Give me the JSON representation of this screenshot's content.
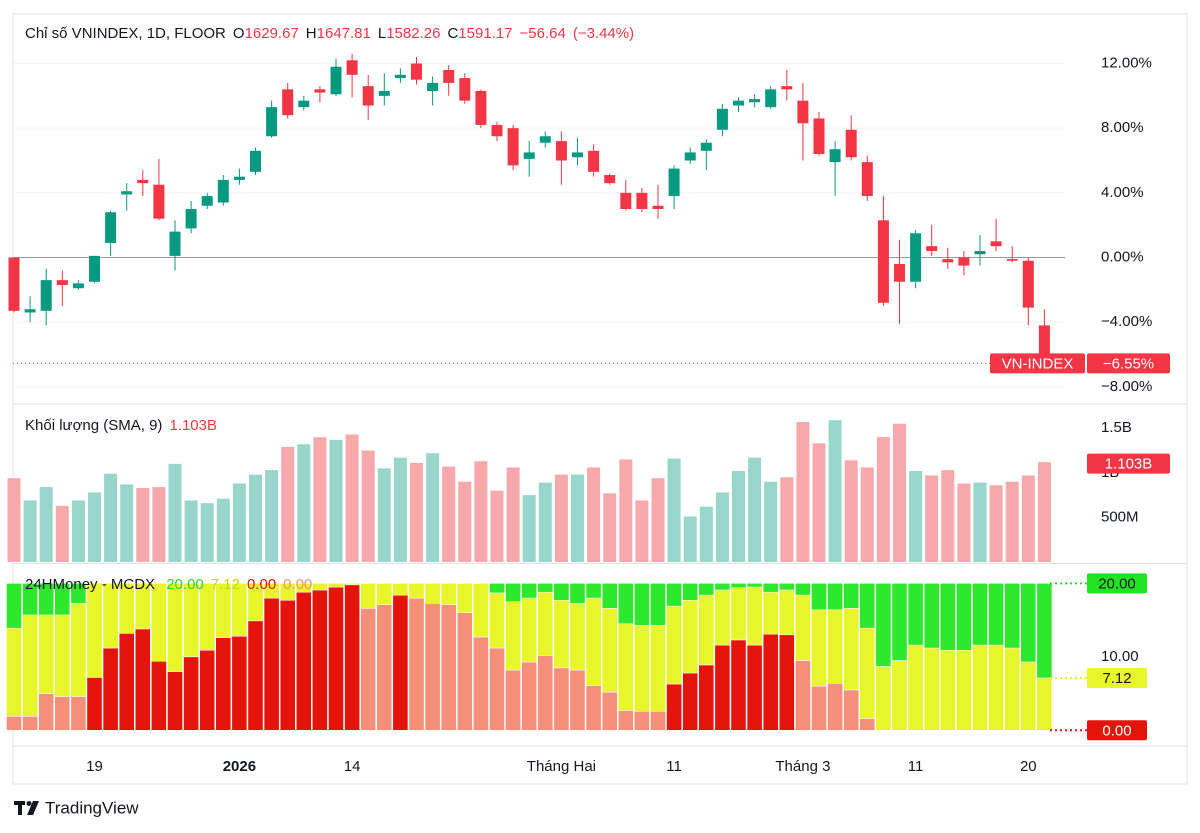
{
  "chart_data": [
    {
      "type": "candlestick",
      "title": "Chỉ số VNINDEX, 1D, FLOOR",
      "ohlc_legend": [
        {
          "key": "O",
          "value": 1629.67
        },
        {
          "key": "H",
          "value": 1647.81
        },
        {
          "key": "L",
          "value": 1582.26
        },
        {
          "key": "C",
          "value": 1591.17
        }
      ],
      "change": {
        "value": -56.64,
        "label": "−56.64"
      },
      "change_percent": {
        "value": -3.44,
        "label": "(−3.44%)"
      },
      "series": [
        {
          "name": "VN-INDEX",
          "up_color": "#089981",
          "down_color": "#f23645",
          "open": [
            0,
            -3.4,
            -3.3,
            -1.4,
            -1.9,
            -1.5,
            0.9,
            3.9,
            4.8,
            4.5,
            0.1,
            1.8,
            3.2,
            3.4,
            4.8,
            5.3,
            7.5,
            10.4,
            9.3,
            10.4,
            10.1,
            12.2,
            10.6,
            10.0,
            11.1,
            12.0,
            10.3,
            11.6,
            11.1,
            10.3,
            8.2,
            8.0,
            6.1,
            7.1,
            7.2,
            6.2,
            6.6,
            5.1,
            4.0,
            4.0,
            3.2,
            3.8,
            6.0,
            6.6,
            7.9,
            9.4,
            9.6,
            9.3,
            10.6,
            9.7,
            8.6,
            5.9,
            7.9,
            5.9,
            2.3,
            -0.4,
            -1.5,
            0.7,
            -0.1,
            0,
            0.2,
            1.0,
            -0.1,
            -0.2,
            -4.2
          ],
          "high": [
            0,
            -2.4,
            -0.7,
            -0.8,
            -1.4,
            0.1,
            2.9,
            4.6,
            5.4,
            6.1,
            2.3,
            3.5,
            4.0,
            5.1,
            5.5,
            6.8,
            9.7,
            10.8,
            10.0,
            10.6,
            12.3,
            12.6,
            11.3,
            11.4,
            11.7,
            12.4,
            11.2,
            11.9,
            11.4,
            10.4,
            8.4,
            8.2,
            7.2,
            7.8,
            7.8,
            7.4,
            7.0,
            5.2,
            4.8,
            4.3,
            4.5,
            5.7,
            6.8,
            7.3,
            9.5,
            9.9,
            10.1,
            10.6,
            11.6,
            10.8,
            9.0,
            7.2,
            8.8,
            6.3,
            3.8,
            1.1,
            1.7,
            2.0,
            0.6,
            0.4,
            1.4,
            2.4,
            0.7,
            0,
            -3.2
          ],
          "low": [
            -3.4,
            -4.0,
            -4.2,
            -3.0,
            -2.0,
            -1.6,
            0.1,
            2.9,
            3.8,
            2.3,
            -0.8,
            1.5,
            3.0,
            3.2,
            4.5,
            5.1,
            7.4,
            8.6,
            9.1,
            9.6,
            10.0,
            9.9,
            8.5,
            9.4,
            10.8,
            10.7,
            9.4,
            10.0,
            9.5,
            8.0,
            7.2,
            5.4,
            5.0,
            6.8,
            4.5,
            5.7,
            5.0,
            4.5,
            2.9,
            2.8,
            2.4,
            3.0,
            5.8,
            5.4,
            7.5,
            9.0,
            9.3,
            9.2,
            9.7,
            6.0,
            6.3,
            3.8,
            6.0,
            3.5,
            -3.0,
            -4.1,
            -1.9,
            0.1,
            -0.7,
            -1.1,
            -0.5,
            0.4,
            -0.3,
            -4.2,
            -6.55
          ],
          "close": [
            -3.3,
            -3.2,
            -1.4,
            -1.7,
            -1.6,
            0.1,
            2.8,
            4.1,
            4.6,
            2.4,
            1.6,
            3.0,
            3.8,
            4.8,
            5.0,
            6.6,
            9.3,
            8.8,
            9.7,
            10.2,
            11.8,
            11.3,
            9.4,
            10.3,
            11.3,
            11.0,
            10.8,
            10.8,
            9.7,
            8.2,
            7.5,
            5.7,
            6.5,
            7.5,
            6.0,
            6.5,
            5.3,
            4.6,
            3.0,
            3.0,
            3.0,
            5.5,
            6.5,
            7.1,
            9.2,
            9.7,
            9.8,
            10.4,
            10.4,
            8.3,
            6.4,
            6.7,
            6.2,
            3.8,
            -2.8,
            -1.5,
            1.5,
            0.4,
            -0.3,
            -0.5,
            0.4,
            0.7,
            -0.2,
            -3.1,
            -6.55
          ]
        }
      ],
      "last_value_label": "−6.55%",
      "ylim": [
        -9,
        15
      ],
      "yticks": [
        {
          "value": 12,
          "label": "12.00%"
        },
        {
          "value": 8,
          "label": "8.00%"
        },
        {
          "value": 4,
          "label": "4.00%"
        },
        {
          "value": 0,
          "label": "0.00%"
        },
        {
          "value": -4,
          "label": "−4.00%"
        },
        {
          "value": -8,
          "label": "−8.00%"
        }
      ],
      "grid": true
    },
    {
      "type": "bar",
      "title": "Khối lượng (SMA, 9)",
      "values": [
        940000000.0,
        690000000.0,
        840000000.0,
        630000000.0,
        690000000.0,
        780000000.0,
        990000000.0,
        870000000.0,
        830000000.0,
        840000000.0,
        1100000000.0,
        690000000.0,
        660000000.0,
        710000000.0,
        880000000.0,
        980000000.0,
        1030000000.0,
        1290000000.0,
        1320000000.0,
        1400000000.0,
        1370000000.0,
        1430000000.0,
        1250000000.0,
        1050000000.0,
        1170000000.0,
        1110000000.0,
        1220000000.0,
        1070000000.0,
        900000000.0,
        1130000000.0,
        800000000.0,
        1060000000.0,
        750000000.0,
        890000000.0,
        980000000.0,
        980000000.0,
        1060000000.0,
        770000000.0,
        1150000000.0,
        690000000.0,
        940000000.0,
        1160000000.0,
        510000000.0,
        620000000.0,
        780000000.0,
        1020000000.0,
        1170000000.0,
        900000000.0,
        950000000.0,
        1570000000.0,
        1330000000.0,
        1590000000.0,
        1140000000.0,
        1060000000.0,
        1400000000.0,
        1550000000.0,
        1020000000.0,
        970000000.0,
        1030000000.0,
        880000000.0,
        890000000.0,
        860000000.0,
        900000000.0,
        970000000.0,
        1120000000.0
      ],
      "up_color": "#98d5cb",
      "down_color": "#f7a8aa",
      "sma": {
        "value": 1103000000.0,
        "label": "1.103B"
      },
      "sma_color": "#f23645",
      "ylim": [
        0,
        1760000000.0
      ],
      "yticks": [
        {
          "value": 500000000.0,
          "label": "500M"
        },
        {
          "value": 1000000000.0,
          "label": "1B"
        },
        {
          "value": 1500000000.0,
          "label": "1.5B"
        }
      ]
    },
    {
      "type": "stacked_bar",
      "title": "24HMoney - MCDX",
      "legend_values": [
        {
          "value": 20,
          "label": "20.00",
          "color": "#2fd52f"
        },
        {
          "value": 7.12,
          "label": "7.12",
          "color": "#c9d600"
        },
        {
          "value": 0,
          "label": "0.00",
          "color": "#e5140b"
        },
        {
          "value": 0,
          "label": "0.00",
          "color": "#f4907a"
        }
      ],
      "categories": [
        null,
        null,
        null,
        null,
        null,
        "19",
        null,
        null,
        null,
        null,
        null,
        null,
        null,
        null,
        "2026",
        null,
        null,
        null,
        null,
        null,
        null,
        "14",
        null,
        null,
        null,
        null,
        null,
        null,
        null,
        null,
        null,
        null,
        null,
        null,
        "Tháng Hai",
        null,
        null,
        null,
        null,
        null,
        null,
        "11",
        null,
        null,
        null,
        null,
        null,
        null,
        null,
        "Tháng 3",
        null,
        null,
        null,
        null,
        null,
        null,
        "11",
        null,
        null,
        null,
        null,
        null,
        null,
        "20",
        null
      ],
      "series": [
        {
          "colors": [
            "#f4907a",
            "#f4907a",
            "#f4907a",
            "#f4907a",
            "#f4907a",
            "#e5140b",
            "#e5140b",
            "#e5140b",
            "#e5140b",
            "#e5140b",
            "#e5140b",
            "#e5140b",
            "#e5140b",
            "#e5140b",
            "#e5140b",
            "#e5140b",
            "#e5140b",
            "#e5140b",
            "#e5140b",
            "#e5140b",
            "#e5140b",
            "#e5140b",
            "#f4907a",
            "#f4907a",
            "#e5140b",
            "#f4907a",
            "#f4907a",
            "#f4907a",
            "#f4907a",
            "#f4907a",
            "#f4907a",
            "#f4907a",
            "#f4907a",
            "#f4907a",
            "#f4907a",
            "#f4907a",
            "#f4907a",
            "#f4907a",
            "#f4907a",
            "#f4907a",
            "#f4907a",
            "#e5140b",
            "#e5140b",
            "#e5140b",
            "#e5140b",
            "#e5140b",
            "#e5140b",
            "#e5140b",
            "#e5140b",
            "#f4907a",
            "#f4907a",
            "#f4907a",
            "#f4907a",
            "#f4907a",
            "#f4907a",
            "#f4907a",
            "#f4907a",
            "#f4907a",
            "#f4907a",
            "#f4907a",
            "#f4907a",
            "#f4907a",
            "#f4907a",
            "#f4907a",
            "#f4907a"
          ],
          "values": [
            1.9,
            1.9,
            5.0,
            4.6,
            4.6,
            7.2,
            11.2,
            13.2,
            13.8,
            9.4,
            8.0,
            10.0,
            10.9,
            12.6,
            12.8,
            14.9,
            18.0,
            17.7,
            18.8,
            19.1,
            19.5,
            19.8,
            16.6,
            17.1,
            18.4,
            18.0,
            17.3,
            17.1,
            16.0,
            12.7,
            11.2,
            8.2,
            9.3,
            10.2,
            8.5,
            8.2,
            6.1,
            5.2,
            2.7,
            2.6,
            2.6,
            6.3,
            7.8,
            8.9,
            11.6,
            12.3,
            11.6,
            13.1,
            13.0,
            9.5,
            6.0,
            6.4,
            5.5,
            1.6,
            0,
            0,
            0,
            0,
            0,
            0,
            0,
            0,
            0,
            0,
            0
          ]
        },
        {
          "color": "#e7f52a",
          "values": [
            12.0,
            13.8,
            10.7,
            11.1,
            12.7,
            12.8,
            8.8,
            6.8,
            6.2,
            10.6,
            12.0,
            10.0,
            9.1,
            7.4,
            7.2,
            5.1,
            2.0,
            2.3,
            1.2,
            0.9,
            0.5,
            0.2,
            3.4,
            2.9,
            1.6,
            2.0,
            2.7,
            2.9,
            4.0,
            7.3,
            7.5,
            9.3,
            8.7,
            8.6,
            9.2,
            9.1,
            11.9,
            11.4,
            11.8,
            11.7,
            11.7,
            10.6,
            9.9,
            9.5,
            7.5,
            7.1,
            7.9,
            5.7,
            6.1,
            8.9,
            10.4,
            10.0,
            11.1,
            12.3,
            8.7,
            9.5,
            11.6,
            11.2,
            10.9,
            10.9,
            11.6,
            11.6,
            11.2,
            9.3,
            7.12
          ]
        },
        {
          "color": "#2ee82e",
          "values": [
            6.1,
            4.3,
            4.3,
            4.3,
            2.7,
            0,
            0,
            0,
            0,
            0,
            0,
            0,
            0,
            0,
            0,
            0,
            0,
            0,
            0,
            0,
            0,
            0,
            0,
            0,
            0,
            0,
            0,
            0,
            0,
            0,
            1.3,
            2.5,
            2.0,
            1.2,
            2.3,
            2.7,
            2.0,
            3.4,
            5.5,
            5.7,
            5.7,
            3.1,
            2.3,
            1.6,
            0.9,
            0.6,
            0.5,
            1.2,
            0.9,
            1.6,
            3.6,
            3.6,
            3.4,
            6.1,
            11.3,
            10.5,
            8.4,
            8.8,
            9.1,
            9.1,
            8.4,
            8.4,
            8.8,
            10.7,
            12.88
          ]
        }
      ],
      "ylim": [
        -2,
        22.5
      ],
      "yticks": [
        {
          "value": 10,
          "label": "10.00"
        }
      ],
      "level_labels": [
        {
          "value": 20,
          "label": "20.00",
          "color": "#22e322"
        },
        {
          "value": 7.12,
          "label": "7.12",
          "color": "#e7f52a"
        },
        {
          "value": 0,
          "label": "0.00",
          "color": "#e5140b"
        }
      ]
    }
  ],
  "brand": "TradingView"
}
